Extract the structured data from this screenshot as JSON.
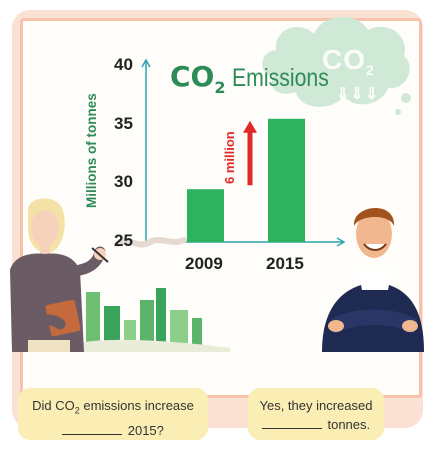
{
  "chart_data": {
    "type": "bar",
    "title_main": "CO",
    "title_sub": "2",
    "title_rest": "Emissions",
    "categories": [
      "2009",
      "2015"
    ],
    "values": [
      29.5,
      35.5
    ],
    "ylabel": "Millions of tonnes",
    "xlabel": "",
    "ylim": [
      25,
      40
    ],
    "yticks": [
      "25",
      "30",
      "35",
      "40"
    ],
    "annotation": "6 million",
    "bar_color": "#2db35d",
    "arrow_color": "#e02a2a",
    "axis_color": "#2aa3b0",
    "grid": false
  },
  "decor": {
    "cloud_text": "CO",
    "cloud_sub": "2",
    "cloud_arrows": "⇓⇓⇓"
  },
  "speech": {
    "left_line1_a": "Did CO",
    "left_line1_sub": "2",
    "left_line1_b": " emissions increase",
    "left_line2": "2015?",
    "right_line1": "Yes, they increased",
    "right_line2": "tonnes."
  }
}
